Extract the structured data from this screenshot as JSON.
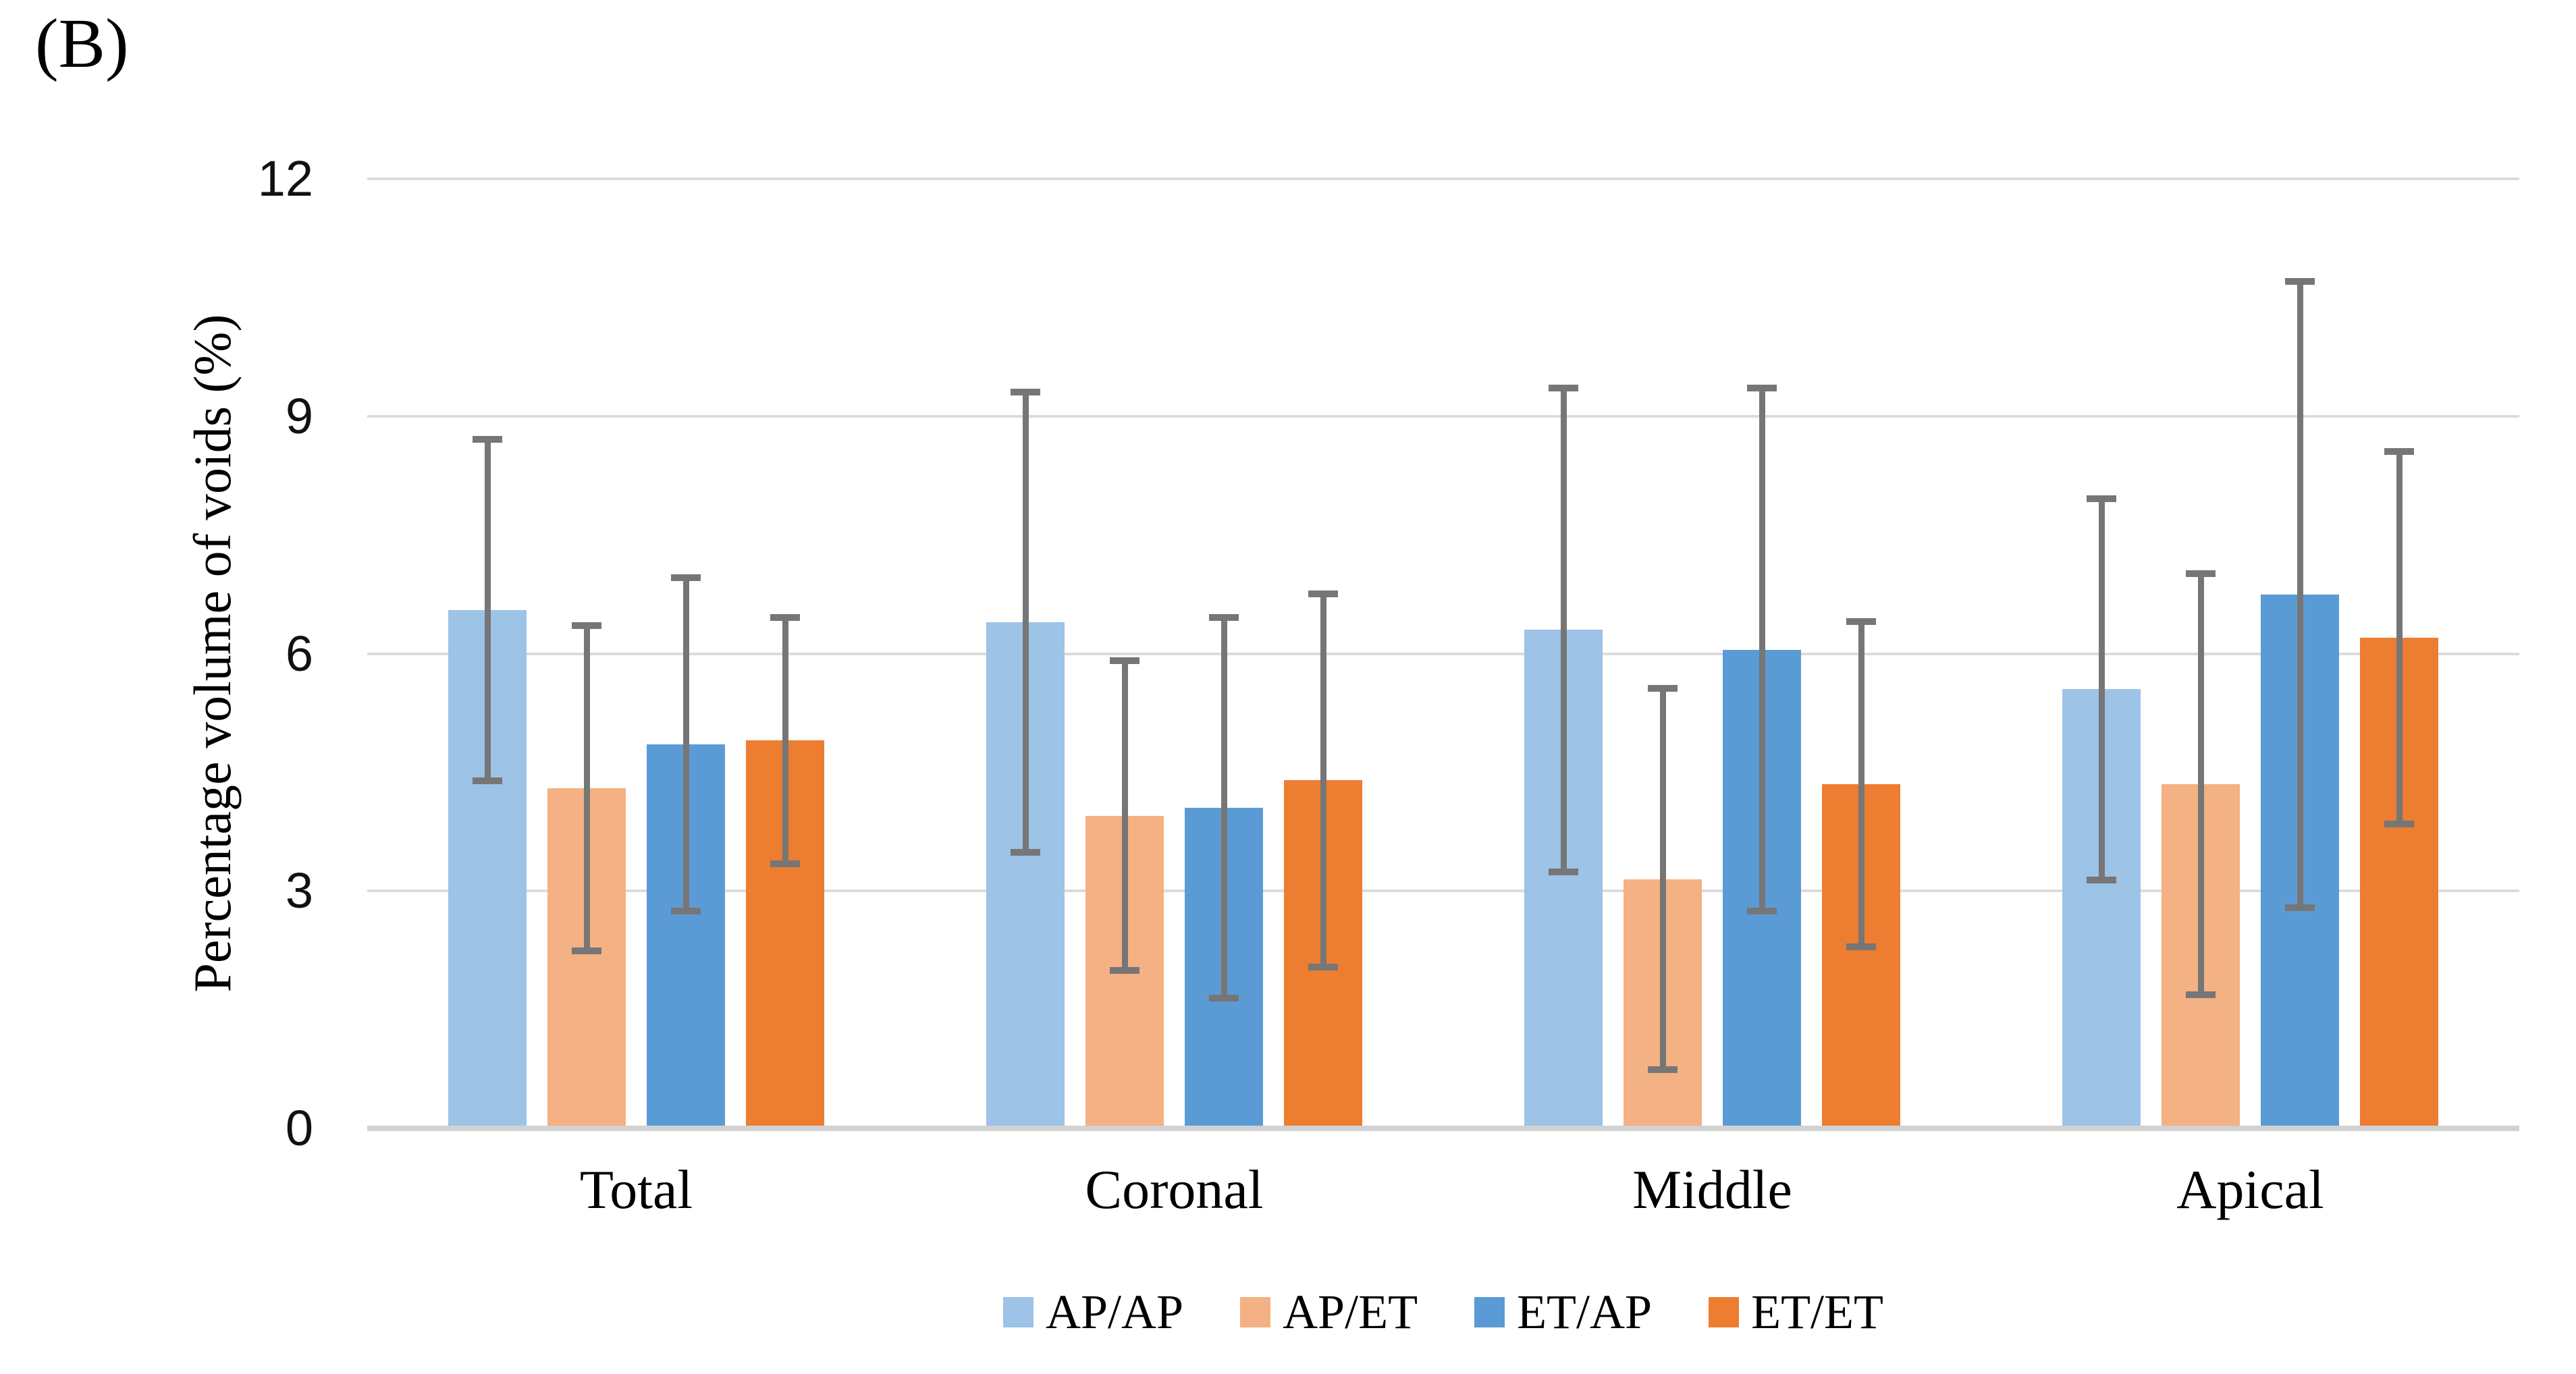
{
  "figure": {
    "panel_label": "(B)"
  },
  "chart_data": {
    "type": "bar",
    "title": "",
    "panel_label": "(B)",
    "categories": [
      "Total",
      "Coronal",
      "Middle",
      "Apical"
    ],
    "series": [
      {
        "name": "AP/AP",
        "color": "#9DC3E6",
        "values": [
          6.55,
          6.4,
          6.3,
          5.55
        ],
        "errors": [
          2.2,
          2.95,
          3.1,
          2.45
        ]
      },
      {
        "name": "AP/ET",
        "color": "#F4B183",
        "values": [
          4.3,
          3.95,
          3.15,
          4.35
        ],
        "errors": [
          2.1,
          2.0,
          2.45,
          2.7
        ]
      },
      {
        "name": "ET/AP",
        "color": "#5B9BD5",
        "values": [
          4.85,
          4.05,
          6.05,
          6.75
        ],
        "errors": [
          2.15,
          2.45,
          3.35,
          4.0
        ]
      },
      {
        "name": "ET/ET",
        "color": "#ED7D31",
        "values": [
          4.9,
          4.4,
          4.35,
          6.2
        ],
        "errors": [
          1.6,
          2.4,
          2.1,
          2.4
        ]
      }
    ],
    "xlabel": "",
    "ylabel": "Percentage volume of voids (%)",
    "y_ticks": [
      0,
      3,
      6,
      9,
      12
    ],
    "ylim": [
      0,
      12
    ],
    "grid": true,
    "error_bars": true,
    "legend_position": "bottom",
    "colors": {
      "gridline": "#DCDCDC",
      "axis_line": "#D2D2D2",
      "error_bar": "#767676",
      "text": "#000000",
      "background": "#FFFFFF"
    }
  }
}
